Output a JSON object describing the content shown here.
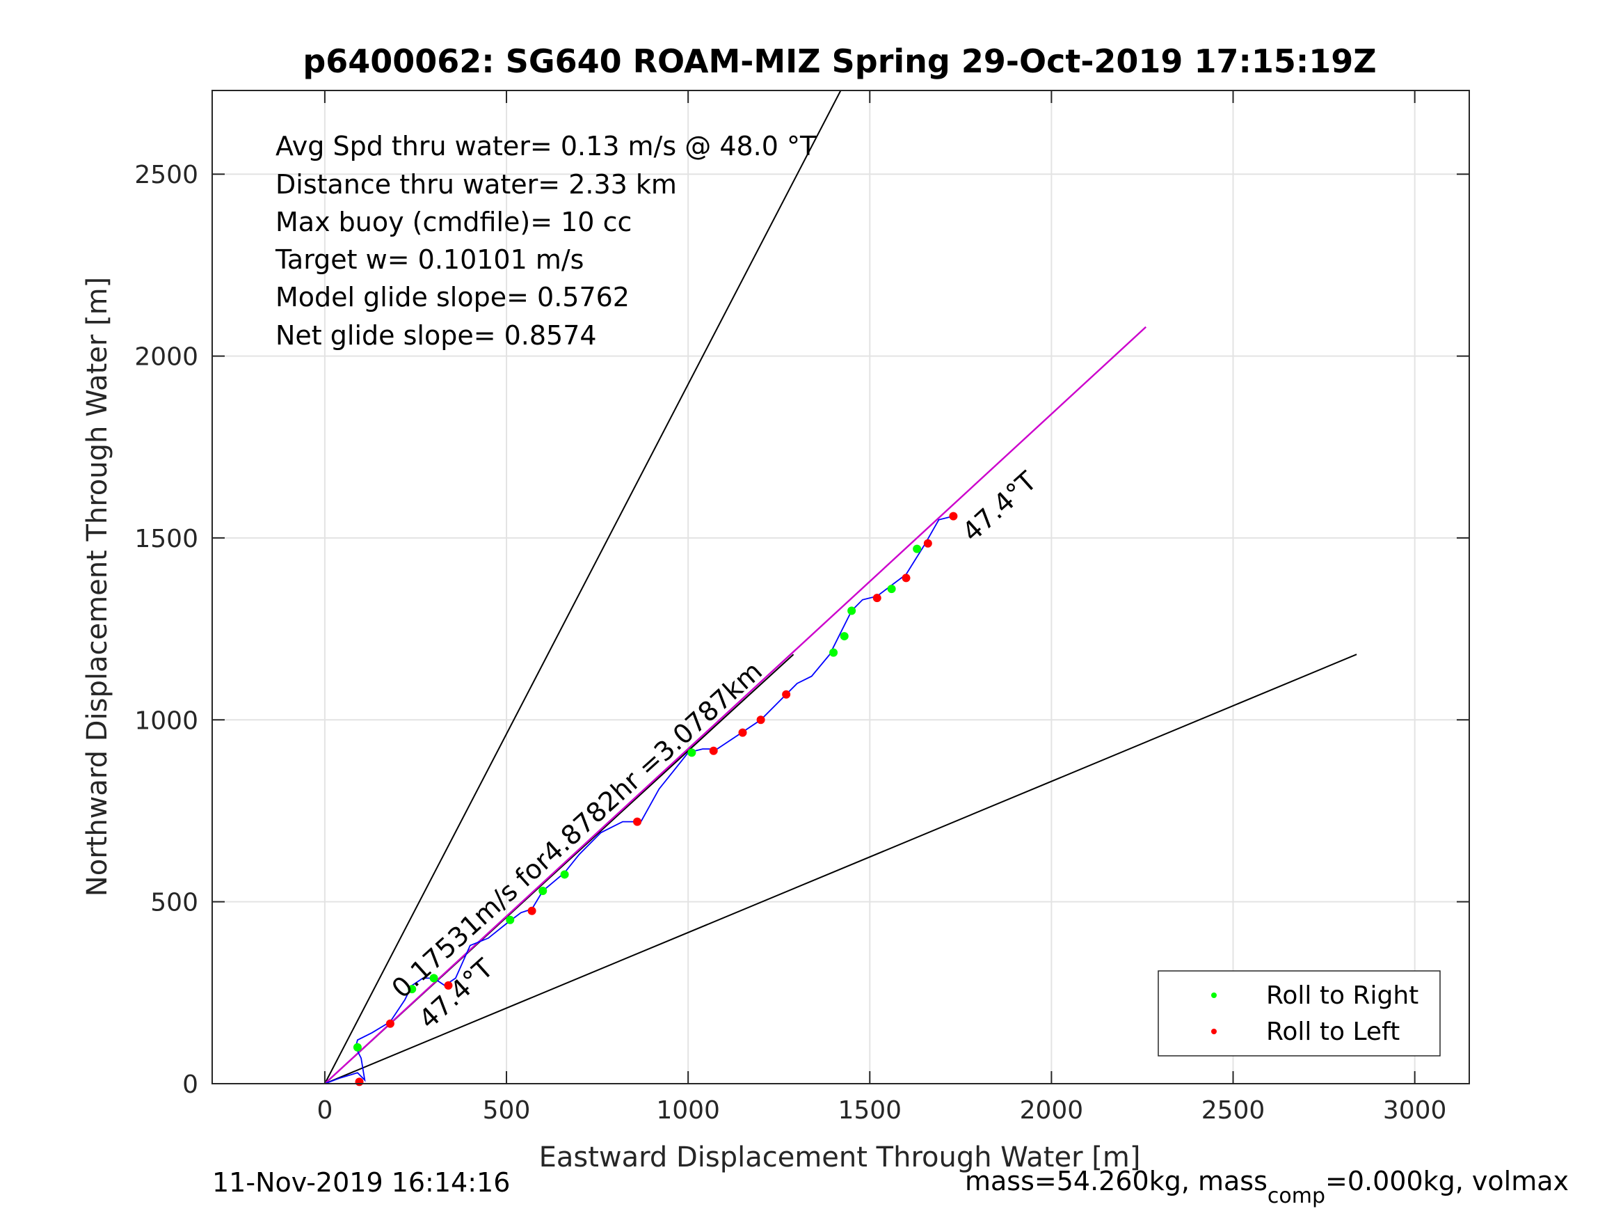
{
  "chart_data": {
    "type": "line",
    "title": "p6400062: SG640 ROAM-MIZ Spring 29-Oct-2019 17:15:19Z",
    "xlabel": "Eastward Displacement Through Water [m]",
    "ylabel": "Northward Displacement Through Water [m]",
    "xlim": [
      -310,
      3150
    ],
    "ylim": [
      0,
      2730
    ],
    "xticks": [
      0,
      500,
      1000,
      1500,
      2000,
      2500,
      3000
    ],
    "yticks": [
      0,
      500,
      1000,
      1500,
      2000,
      2500
    ],
    "grid": true,
    "annotations": [
      "Avg Spd thru water=  0.13 m/s @  48.0 °T",
      "Distance thru water=  2.33 km",
      "Max buoy (cmdfile)= 10 cc",
      "Target w= 0.10101 m/s",
      "Model glide slope= 0.5762",
      "Net glide slope= 0.8574"
    ],
    "heading_label_end": "47.4°T",
    "heading_label_start": "47.4°T",
    "speed_label": "0.17531m/s for4.8782hr =3.0787km",
    "footer_left": "11-Nov-2019 16:14:16",
    "footer_right_main": "mass=54.260kg, mass",
    "footer_right_sub": "comp",
    "footer_right_rest": "=0.000kg, volmax",
    "legend": {
      "placement": "bottom-right",
      "items": [
        {
          "name": "Roll to Right",
          "color": "#00ff00"
        },
        {
          "name": "Roll to Left",
          "color": "#ff0000"
        }
      ]
    },
    "series": [
      {
        "kind": "reference",
        "color": "#000000",
        "x": [
          0,
          1420
        ],
        "y": [
          0,
          2730
        ]
      },
      {
        "kind": "reference",
        "color": "#000000",
        "x": [
          0,
          2840
        ],
        "y": [
          0,
          1180
        ]
      },
      {
        "kind": "reference",
        "color": "#000000",
        "x": [
          0,
          1290
        ],
        "y": [
          0,
          1180
        ]
      },
      {
        "kind": "heading",
        "color": "#cc00cc",
        "x": [
          0,
          2260
        ],
        "y": [
          0,
          2080
        ]
      },
      {
        "kind": "track",
        "color": "#0000ff",
        "x": [
          0,
          40,
          90,
          110,
          100,
          85,
          90,
          130,
          180,
          220,
          240,
          270,
          300,
          330,
          360,
          400,
          450,
          500,
          540,
          570,
          600,
          660,
          700,
          760,
          820,
          870,
          920,
          960,
          1000,
          1040,
          1080,
          1140,
          1200,
          1260,
          1300,
          1340,
          1390,
          1420,
          1450,
          1480,
          1520,
          1560,
          1600,
          1650,
          1690,
          1730
        ],
        "y": [
          0,
          15,
          30,
          10,
          70,
          100,
          120,
          140,
          170,
          230,
          270,
          290,
          290,
          270,
          290,
          380,
          400,
          440,
          470,
          480,
          530,
          580,
          630,
          690,
          720,
          720,
          810,
          860,
          910,
          920,
          920,
          960,
          1000,
          1060,
          1100,
          1120,
          1180,
          1240,
          1300,
          1330,
          1340,
          1370,
          1400,
          1480,
          1550,
          1560
        ]
      },
      {
        "kind": "roll_right",
        "color": "#00ff00",
        "x": [
          90,
          240,
          300,
          510,
          600,
          660,
          1010,
          1400,
          1430,
          1450,
          1560,
          1630
        ],
        "y": [
          100,
          260,
          290,
          450,
          530,
          575,
          910,
          1185,
          1230,
          1300,
          1360,
          1470
        ]
      },
      {
        "kind": "roll_left",
        "color": "#ff0000",
        "x": [
          95,
          180,
          340,
          570,
          860,
          1070,
          1150,
          1200,
          1270,
          1520,
          1600,
          1660,
          1730
        ],
        "y": [
          5,
          165,
          270,
          475,
          720,
          915,
          965,
          1000,
          1070,
          1335,
          1390,
          1485,
          1560
        ]
      }
    ]
  }
}
